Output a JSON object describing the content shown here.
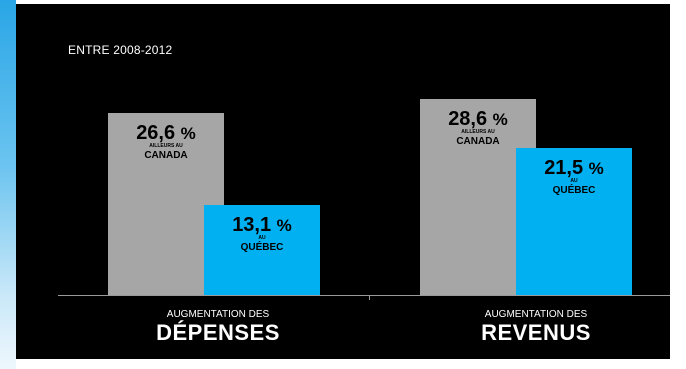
{
  "period": "ENTRE 2008-2012",
  "colors": {
    "canada": "#a6a6a6",
    "quebec": "#00b0f0",
    "background": "#000000",
    "accent": "#29a6e6"
  },
  "chart_data": {
    "type": "bar",
    "title": "",
    "categories": [
      {
        "small": "AUGMENTATION DES",
        "big": "DÉPENSES"
      },
      {
        "small": "AUGMENTATION DES",
        "big": "REVENUS"
      }
    ],
    "series": [
      {
        "name_top": "AILLEURS AU",
        "name_bottom": "CANADA",
        "values": [
          26.6,
          28.6
        ],
        "labels": [
          "26,6",
          "28,6"
        ],
        "unit": "%",
        "color": "#a6a6a6"
      },
      {
        "name_top": "AU",
        "name_bottom": "QUÉBEC",
        "values": [
          13.1,
          21.5
        ],
        "labels": [
          "13,1",
          "21,5"
        ],
        "unit": "%",
        "color": "#00b0f0"
      }
    ],
    "ylim": [
      0,
      30
    ],
    "grid": false
  }
}
